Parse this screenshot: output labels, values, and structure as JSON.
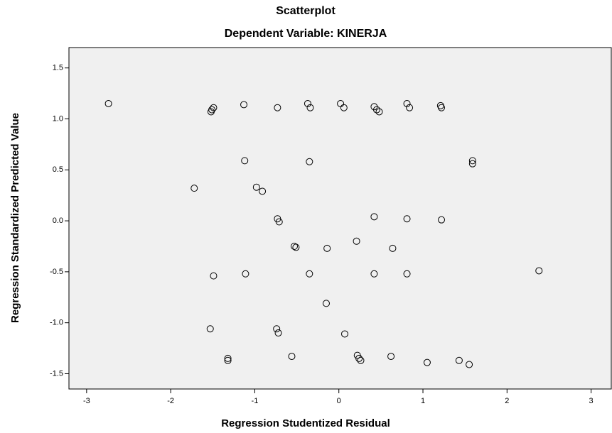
{
  "chart_data": {
    "type": "scatter",
    "title": "Scatterplot",
    "subtitle": "Dependent Variable: KINERJA",
    "xlabel": "Regression Studentized Residual",
    "ylabel": "Regression Standardized Predicted Value",
    "x": [
      -2.74,
      -1.51,
      -1.49,
      -1.52,
      -1.13,
      -0.73,
      -0.37,
      -0.34,
      0.02,
      0.06,
      0.42,
      0.45,
      0.48,
      0.81,
      0.84,
      1.21,
      1.22,
      -1.12,
      -0.35,
      1.59,
      1.59,
      -1.72,
      -0.98,
      -0.91,
      -0.73,
      -0.71,
      0.42,
      0.81,
      1.22,
      -0.53,
      -0.51,
      -0.14,
      0.21,
      0.64,
      -1.49,
      -1.11,
      -0.35,
      0.42,
      0.81,
      2.38,
      -0.15,
      0.07,
      -1.53,
      -0.74,
      -0.72,
      -0.56,
      -1.32,
      -1.32,
      0.22,
      0.24,
      0.26,
      0.62,
      1.05,
      1.43,
      1.55
    ],
    "y": [
      1.15,
      1.09,
      1.11,
      1.07,
      1.14,
      1.11,
      1.15,
      1.11,
      1.15,
      1.11,
      1.12,
      1.09,
      1.07,
      1.15,
      1.11,
      1.13,
      1.11,
      0.59,
      0.58,
      0.59,
      0.56,
      0.32,
      0.33,
      0.29,
      0.02,
      -0.01,
      0.04,
      0.02,
      0.01,
      -0.25,
      -0.26,
      -0.27,
      -0.2,
      -0.27,
      -0.54,
      -0.52,
      -0.52,
      -0.52,
      -0.52,
      -0.49,
      -0.81,
      -1.11,
      -1.06,
      -1.06,
      -1.1,
      -1.33,
      -1.35,
      -1.37,
      -1.32,
      -1.35,
      -1.37,
      -1.33,
      -1.39,
      -1.37,
      -1.41
    ],
    "xlim": [
      -3.21,
      3.24
    ],
    "ylim": [
      -1.65,
      1.7
    ],
    "xticks": [
      -3,
      -2,
      -1,
      0,
      1,
      2,
      3
    ],
    "yticks": [
      1.5,
      {
        "value": 1,
        "label": "1.0"
      },
      0.5,
      {
        "value": 0,
        "label": "0.0"
      },
      -0.5,
      {
        "value": -1,
        "label": "-1.0"
      },
      -1.5
    ],
    "marker_color": "#000000",
    "plot_background": "#f0f0f0"
  }
}
